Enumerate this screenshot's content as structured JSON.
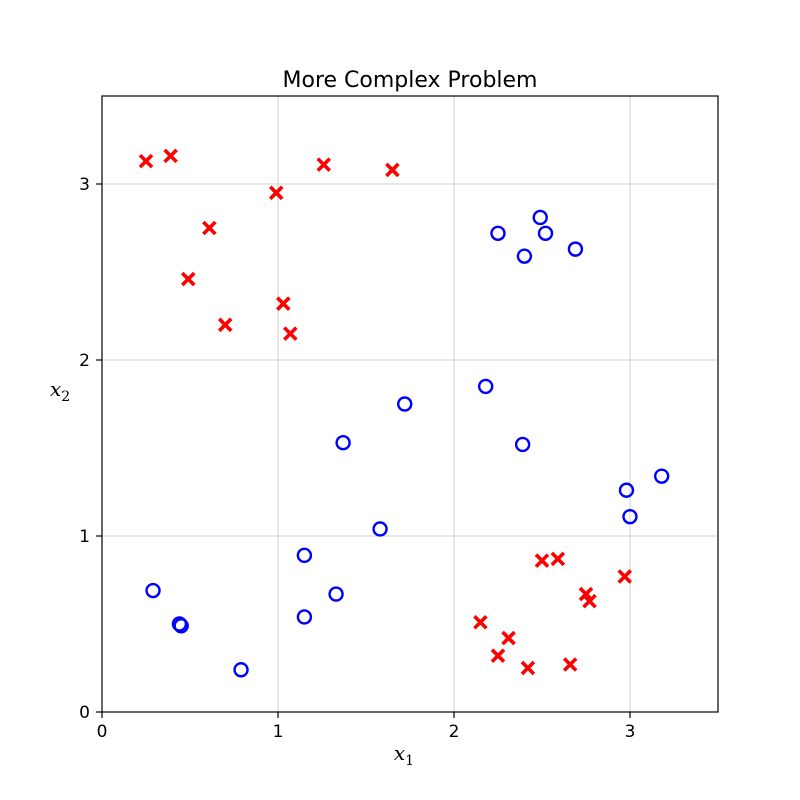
{
  "chart_data": {
    "type": "scatter",
    "title": "More Complex Problem",
    "xlabel": {
      "base": "x",
      "sub": "1"
    },
    "ylabel": {
      "base": "x",
      "sub": "2"
    },
    "xlim": [
      0,
      3.5
    ],
    "ylim": [
      0,
      3.5
    ],
    "xticks": [
      0,
      1,
      2,
      3
    ],
    "yticks": [
      0,
      1,
      2,
      3
    ],
    "grid": true,
    "series": [
      {
        "marker": "x",
        "color": "#ff0000",
        "points": [
          [
            0.25,
            3.13
          ],
          [
            0.39,
            3.16
          ],
          [
            0.61,
            2.75
          ],
          [
            0.49,
            2.46
          ],
          [
            0.7,
            2.2
          ],
          [
            0.99,
            2.95
          ],
          [
            1.26,
            3.11
          ],
          [
            1.65,
            3.08
          ],
          [
            1.03,
            2.32
          ],
          [
            1.07,
            2.15
          ],
          [
            2.5,
            0.86
          ],
          [
            2.59,
            0.87
          ],
          [
            2.97,
            0.77
          ],
          [
            2.75,
            0.67
          ],
          [
            2.77,
            0.63
          ],
          [
            2.15,
            0.51
          ],
          [
            2.31,
            0.42
          ],
          [
            2.25,
            0.32
          ],
          [
            2.42,
            0.25
          ],
          [
            2.66,
            0.27
          ]
        ]
      },
      {
        "marker": "o",
        "color": "#0000ff",
        "points": [
          [
            2.49,
            2.81
          ],
          [
            2.25,
            2.72
          ],
          [
            2.52,
            2.72
          ],
          [
            2.69,
            2.63
          ],
          [
            2.4,
            2.59
          ],
          [
            2.18,
            1.85
          ],
          [
            1.72,
            1.75
          ],
          [
            1.37,
            1.53
          ],
          [
            2.39,
            1.52
          ],
          [
            3.18,
            1.34
          ],
          [
            2.98,
            1.26
          ],
          [
            3.0,
            1.11
          ],
          [
            1.58,
            1.04
          ],
          [
            1.15,
            0.89
          ],
          [
            0.29,
            0.69
          ],
          [
            0.44,
            0.5
          ],
          [
            0.45,
            0.49
          ],
          [
            1.33,
            0.67
          ],
          [
            1.15,
            0.54
          ],
          [
            0.79,
            0.24
          ]
        ]
      }
    ]
  }
}
